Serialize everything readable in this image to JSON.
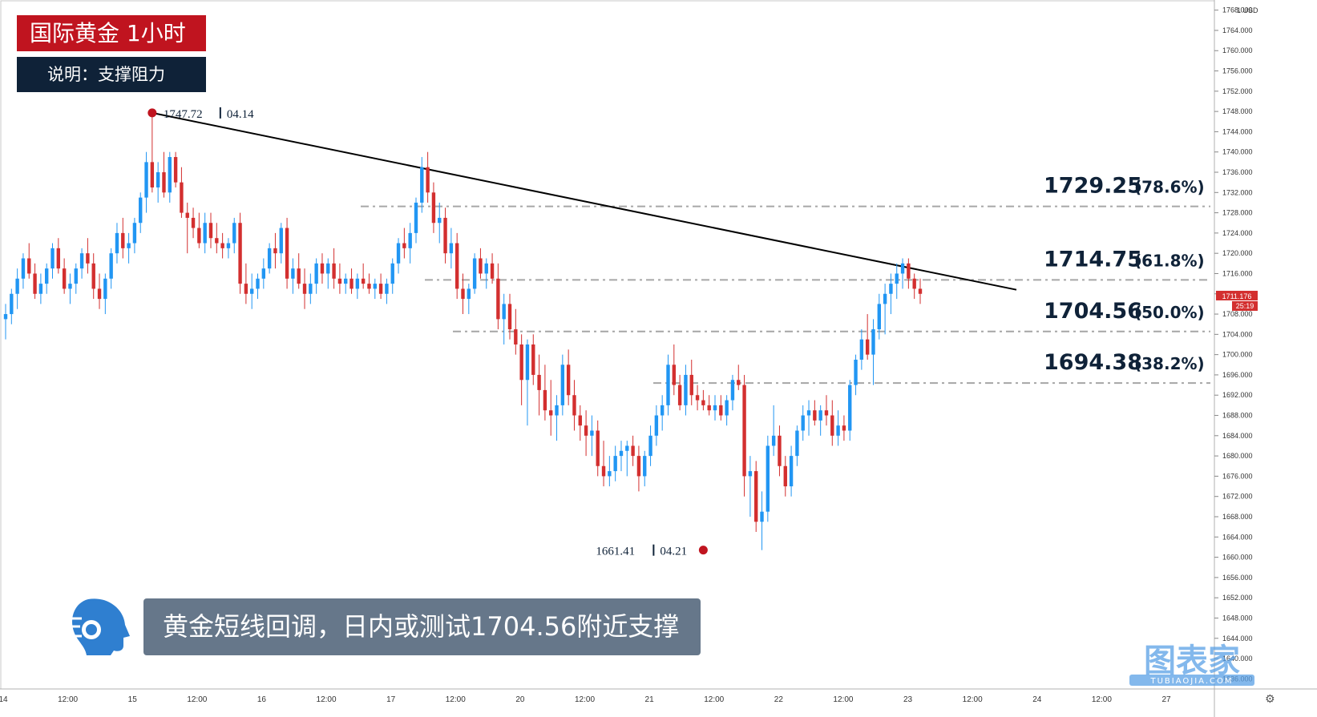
{
  "header": {
    "title": "国际黄金 1小时",
    "subtitle": "说明：支撑阻力"
  },
  "caption": {
    "text": "黄金短线回调，日内或测试1704.56附近支撑"
  },
  "watermark": {
    "cn": "图表家",
    "en": "TUBIAOJIA.COM"
  },
  "currency_label": "USD",
  "chart_data": {
    "type": "candlestick",
    "ylim": [
      1634,
      1770
    ],
    "y_ticks": [
      "1768.000",
      "1764.000",
      "1760.000",
      "1756.000",
      "1752.000",
      "1748.000",
      "1744.000",
      "1740.000",
      "1736.000",
      "1732.000",
      "1728.000",
      "1724.000",
      "1720.000",
      "1716.000",
      "1712.000",
      "1708.000",
      "1704.000",
      "1700.000",
      "1696.000",
      "1692.000",
      "1688.000",
      "1684.000",
      "1680.000",
      "1676.000",
      "1672.000",
      "1668.000",
      "1664.000",
      "1660.000",
      "1656.000",
      "1652.000",
      "1648.000",
      "1644.000",
      "1640.000",
      "1636.000"
    ],
    "y_top_label": "1",
    "x_ticks": [
      "14",
      "12:00",
      "15",
      "12:00",
      "16",
      "12:00",
      "17",
      "12:00",
      "20",
      "12:00",
      "21",
      "12:00",
      "22",
      "12:00",
      "23",
      "12:00",
      "24",
      "12:00",
      "27"
    ],
    "current_price": "1711.176",
    "countdown": "25:19",
    "fib_levels": [
      {
        "price": 1729.25,
        "label": "1729.25",
        "pct": "(78.6%)"
      },
      {
        "price": 1714.75,
        "label": "1714.75",
        "pct": "(61.8%)"
      },
      {
        "price": 1704.56,
        "label": "1704.56",
        "pct": "(50.0%)"
      },
      {
        "price": 1694.38,
        "label": "1694.38",
        "pct": "(38.2%)"
      }
    ],
    "high_marker": {
      "price": 1747.72,
      "label": "1747.72",
      "date": "04.14"
    },
    "low_marker": {
      "price": 1661.41,
      "label": "1661.41",
      "date": "04.21"
    },
    "trendline": [
      [
        1747.72
      ],
      [
        1715.0
      ]
    ],
    "colors": {
      "up": "#2196f3",
      "down": "#d32f2f",
      "marker": "#c0141f",
      "fib": "#a6a6a6",
      "trend": "#000000"
    },
    "candles": [
      [
        1707,
        1710,
        1703,
        1708
      ],
      [
        1708,
        1713,
        1706,
        1712
      ],
      [
        1712,
        1717,
        1709,
        1715
      ],
      [
        1715,
        1720,
        1713,
        1719
      ],
      [
        1719,
        1722,
        1715,
        1716
      ],
      [
        1716,
        1718,
        1711,
        1712
      ],
      [
        1712,
        1716,
        1710,
        1714
      ],
      [
        1714,
        1718,
        1712,
        1717
      ],
      [
        1717,
        1722,
        1715,
        1721
      ],
      [
        1721,
        1723,
        1716,
        1717
      ],
      [
        1717,
        1719,
        1712,
        1713
      ],
      [
        1713,
        1716,
        1710,
        1714
      ],
      [
        1714,
        1718,
        1712,
        1717
      ],
      [
        1717,
        1721,
        1715,
        1720
      ],
      [
        1720,
        1723,
        1716,
        1718
      ],
      [
        1718,
        1720,
        1711,
        1713
      ],
      [
        1713,
        1716,
        1709,
        1711
      ],
      [
        1711,
        1716,
        1708,
        1715
      ],
      [
        1715,
        1721,
        1713,
        1720
      ],
      [
        1720,
        1726,
        1718,
        1724
      ],
      [
        1724,
        1727,
        1719,
        1721
      ],
      [
        1721,
        1724,
        1718,
        1722
      ],
      [
        1722,
        1727,
        1720,
        1726
      ],
      [
        1726,
        1732,
        1724,
        1731
      ],
      [
        1731,
        1740,
        1728,
        1738
      ],
      [
        1738,
        1747.72,
        1732,
        1733
      ],
      [
        1733,
        1738,
        1730,
        1736
      ],
      [
        1736,
        1740,
        1731,
        1732
      ],
      [
        1732,
        1740,
        1730,
        1739
      ],
      [
        1739,
        1740,
        1733,
        1734
      ],
      [
        1734,
        1737,
        1727,
        1728
      ],
      [
        1728,
        1730,
        1720,
        1727
      ],
      [
        1727,
        1729,
        1723,
        1725
      ],
      [
        1725,
        1728,
        1721,
        1722
      ],
      [
        1722,
        1728,
        1720,
        1726
      ],
      [
        1726,
        1728,
        1721,
        1723
      ],
      [
        1723,
        1726,
        1720,
        1722
      ],
      [
        1722,
        1724,
        1719,
        1721
      ],
      [
        1721,
        1723,
        1719,
        1722
      ],
      [
        1722,
        1727,
        1720,
        1726
      ],
      [
        1726,
        1728,
        1712,
        1714
      ],
      [
        1714,
        1718,
        1710,
        1712
      ],
      [
        1712,
        1716,
        1709,
        1713
      ],
      [
        1713,
        1716,
        1711,
        1715
      ],
      [
        1715,
        1719,
        1713,
        1717
      ],
      [
        1717,
        1722,
        1716,
        1721
      ],
      [
        1721,
        1724,
        1717,
        1720
      ],
      [
        1720,
        1726,
        1718,
        1725
      ],
      [
        1725,
        1727,
        1713,
        1715
      ],
      [
        1715,
        1719,
        1712,
        1717
      ],
      [
        1717,
        1720,
        1713,
        1714
      ],
      [
        1714,
        1717,
        1709,
        1712
      ],
      [
        1712,
        1716,
        1710,
        1714
      ],
      [
        1714,
        1719,
        1712,
        1718
      ],
      [
        1718,
        1720,
        1714,
        1716
      ],
      [
        1716,
        1719,
        1713,
        1718
      ],
      [
        1718,
        1721,
        1713,
        1715
      ],
      [
        1715,
        1718,
        1712,
        1714
      ],
      [
        1714,
        1716,
        1712,
        1715
      ],
      [
        1715,
        1717,
        1712,
        1713
      ],
      [
        1713,
        1716,
        1711,
        1715
      ],
      [
        1715,
        1718,
        1713,
        1714
      ],
      [
        1714,
        1716,
        1712,
        1713
      ],
      [
        1713,
        1715,
        1711,
        1714
      ],
      [
        1714,
        1716,
        1711,
        1712
      ],
      [
        1712,
        1715,
        1710,
        1714
      ],
      [
        1714,
        1719,
        1712,
        1718
      ],
      [
        1718,
        1723,
        1716,
        1722
      ],
      [
        1722,
        1725,
        1719,
        1721
      ],
      [
        1721,
        1726,
        1718,
        1724
      ],
      [
        1724,
        1731,
        1722,
        1730
      ],
      [
        1730,
        1739,
        1728,
        1737
      ],
      [
        1737,
        1740,
        1730,
        1732
      ],
      [
        1732,
        1734,
        1724,
        1726
      ],
      [
        1726,
        1730,
        1722,
        1727
      ],
      [
        1727,
        1729,
        1718,
        1720
      ],
      [
        1720,
        1725,
        1717,
        1722
      ],
      [
        1722,
        1724,
        1711,
        1713
      ],
      [
        1713,
        1716,
        1708,
        1711
      ],
      [
        1711,
        1714,
        1708,
        1713
      ],
      [
        1713,
        1720,
        1712,
        1719
      ],
      [
        1719,
        1721,
        1715,
        1716
      ],
      [
        1716,
        1719,
        1713,
        1718
      ],
      [
        1718,
        1720,
        1714,
        1715
      ],
      [
        1715,
        1718,
        1705,
        1707
      ],
      [
        1707,
        1712,
        1702,
        1710
      ],
      [
        1710,
        1712,
        1703,
        1705
      ],
      [
        1705,
        1709,
        1700,
        1702
      ],
      [
        1702,
        1704,
        1690,
        1695
      ],
      [
        1695,
        1703,
        1686,
        1702
      ],
      [
        1702,
        1704,
        1694,
        1696
      ],
      [
        1696,
        1700,
        1688,
        1693
      ],
      [
        1693,
        1698,
        1687,
        1689
      ],
      [
        1689,
        1695,
        1684,
        1688
      ],
      [
        1688,
        1692,
        1683,
        1690
      ],
      [
        1690,
        1700,
        1688,
        1698
      ],
      [
        1698,
        1701,
        1690,
        1692
      ],
      [
        1692,
        1695,
        1685,
        1688
      ],
      [
        1688,
        1690,
        1683,
        1686
      ],
      [
        1686,
        1689,
        1680,
        1684
      ],
      [
        1684,
        1688,
        1680,
        1685
      ],
      [
        1685,
        1687,
        1676,
        1678
      ],
      [
        1678,
        1683,
        1674,
        1676
      ],
      [
        1676,
        1680,
        1674,
        1677
      ],
      [
        1677,
        1682,
        1675,
        1680
      ],
      [
        1680,
        1683,
        1677,
        1681
      ],
      [
        1681,
        1683,
        1676,
        1682
      ],
      [
        1682,
        1684,
        1678,
        1680
      ],
      [
        1680,
        1682,
        1673,
        1676
      ],
      [
        1676,
        1681,
        1674,
        1680
      ],
      [
        1680,
        1686,
        1678,
        1684
      ],
      [
        1684,
        1690,
        1682,
        1688
      ],
      [
        1688,
        1692,
        1685,
        1690
      ],
      [
        1690,
        1700,
        1688,
        1698
      ],
      [
        1698,
        1702,
        1692,
        1694
      ],
      [
        1694,
        1696,
        1689,
        1690
      ],
      [
        1690,
        1698,
        1688,
        1696
      ],
      [
        1696,
        1699,
        1690,
        1692
      ],
      [
        1692,
        1694,
        1689,
        1691
      ],
      [
        1691,
        1693,
        1689,
        1690
      ],
      [
        1690,
        1692,
        1688,
        1689
      ],
      [
        1689,
        1692,
        1687,
        1690
      ],
      [
        1690,
        1692,
        1687,
        1688
      ],
      [
        1688,
        1692,
        1686,
        1691
      ],
      [
        1691,
        1696,
        1689,
        1695
      ],
      [
        1695,
        1698,
        1693,
        1694
      ],
      [
        1694,
        1696,
        1672,
        1676
      ],
      [
        1676,
        1680,
        1668,
        1677
      ],
      [
        1677,
        1679,
        1665,
        1667
      ],
      [
        1667,
        1673,
        1661.41,
        1669
      ],
      [
        1669,
        1684,
        1667,
        1682
      ],
      [
        1682,
        1690,
        1680,
        1684
      ],
      [
        1684,
        1686,
        1676,
        1678
      ],
      [
        1678,
        1680,
        1672,
        1674
      ],
      [
        1674,
        1682,
        1672,
        1680
      ],
      [
        1680,
        1686,
        1678,
        1685
      ],
      [
        1685,
        1690,
        1683,
        1688
      ],
      [
        1688,
        1691,
        1684,
        1689
      ],
      [
        1689,
        1691,
        1686,
        1687
      ],
      [
        1687,
        1690,
        1684,
        1689
      ],
      [
        1689,
        1692,
        1686,
        1688
      ],
      [
        1688,
        1691,
        1682,
        1684
      ],
      [
        1684,
        1689,
        1682,
        1686
      ],
      [
        1686,
        1688,
        1683,
        1685
      ],
      [
        1685,
        1695,
        1683,
        1694
      ],
      [
        1694,
        1700,
        1692,
        1699
      ],
      [
        1699,
        1705,
        1697,
        1703
      ],
      [
        1703,
        1708,
        1699,
        1700
      ],
      [
        1700,
        1707,
        1694,
        1705
      ],
      [
        1705,
        1712,
        1703,
        1710
      ],
      [
        1710,
        1714,
        1704,
        1712
      ],
      [
        1712,
        1716,
        1708,
        1714
      ],
      [
        1714,
        1718,
        1711,
        1716
      ],
      [
        1716,
        1719,
        1713,
        1718
      ],
      [
        1718,
        1719,
        1713,
        1715
      ],
      [
        1715,
        1716,
        1711,
        1713
      ],
      [
        1713,
        1715,
        1710,
        1712
      ]
    ]
  }
}
